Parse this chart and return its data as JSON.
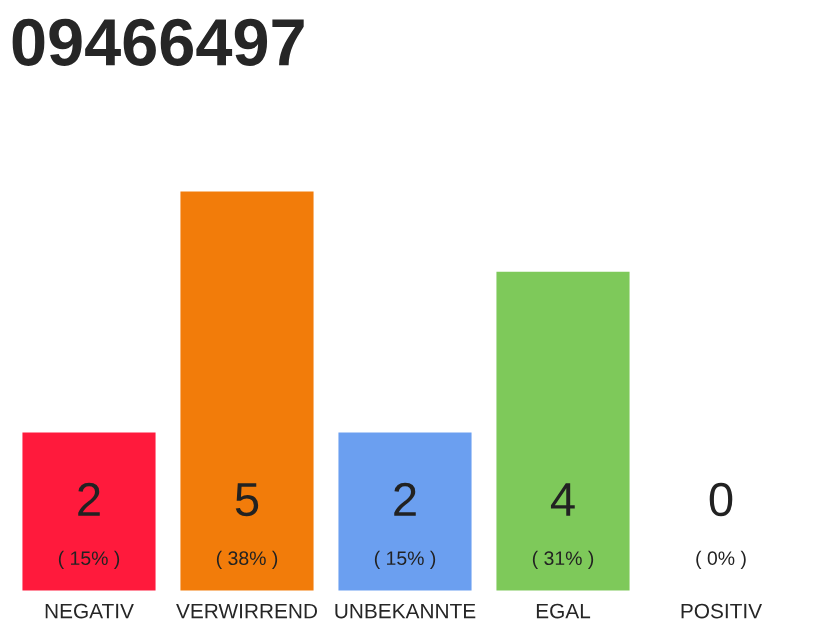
{
  "chart_data": {
    "type": "bar",
    "title": "09466497",
    "categories": [
      "NEGATIV",
      "VERWIRREND",
      "UNBEKANNTE",
      "EGAL",
      "POSITIV"
    ],
    "values": [
      2,
      5,
      2,
      4,
      0
    ],
    "colors": [
      "#ff1a3c",
      "#f27c0a",
      "#6b9ff0",
      "#7ec95a",
      null
    ],
    "value_labels": [
      "2\n( 15% )",
      "5\n( 38% )",
      "2\n( 15% )",
      "4\n( 31% )",
      "0\n( 0% )"
    ],
    "ylim": [
      0,
      5
    ],
    "grid": false,
    "legend": false
  }
}
